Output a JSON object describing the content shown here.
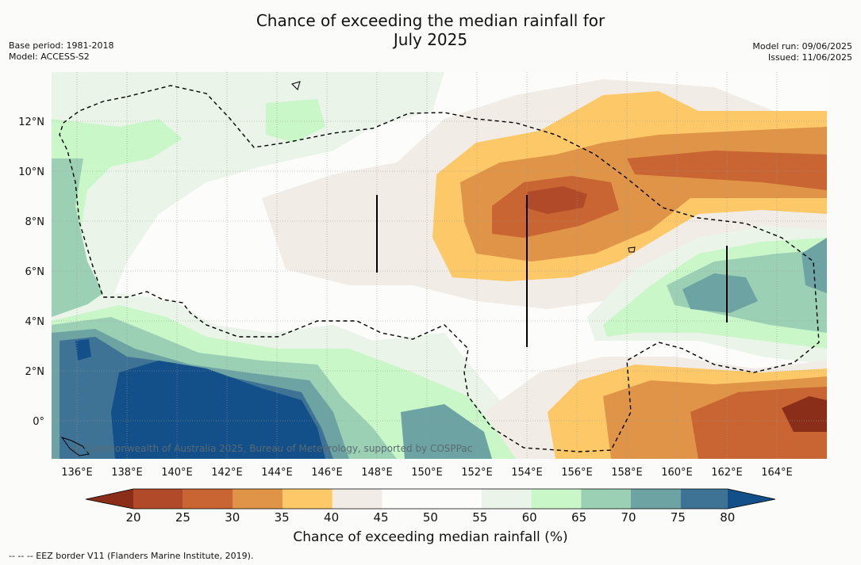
{
  "title_line1": "Chance of exceeding the median rainfall for",
  "title_line2": "July 2025",
  "meta_left": {
    "base_period": "Base period: 1981-2018",
    "model": "Model: ACCESS-S2"
  },
  "meta_right": {
    "model_run": "Model run: 09/06/2025",
    "issued": "Issued: 11/06/2025"
  },
  "x_axis": {
    "ticks": [
      "136°E",
      "138°E",
      "140°E",
      "142°E",
      "144°E",
      "146°E",
      "148°E",
      "150°E",
      "152°E",
      "154°E",
      "156°E",
      "158°E",
      "160°E",
      "162°E",
      "164°E"
    ],
    "range": [
      135,
      166
    ]
  },
  "y_axis": {
    "ticks": [
      "12°N",
      "10°N",
      "8°N",
      "6°N",
      "4°N",
      "2°N",
      "0°"
    ],
    "range": [
      -1.5,
      14
    ]
  },
  "colorbar": {
    "title": "Chance of exceeding median rainfall (%)",
    "ticks": [
      "20",
      "25",
      "30",
      "35",
      "40",
      "45",
      "50",
      "55",
      "60",
      "65",
      "70",
      "75",
      "80"
    ],
    "colors": {
      "lt20": "#8a2e1a",
      "20_25": "#b14a28",
      "25_30": "#c96433",
      "30_35": "#df9447",
      "35_40": "#fdc867",
      "40_45": "#f1ece6",
      "45_50": "#fcfcfa",
      "50_55": "#fcfcfa",
      "55_60": "#eaf4e8",
      "60_65": "#c9f7c8",
      "65_70": "#9bd0b5",
      "70_75": "#6ea3a4",
      "75_80": "#3f7396",
      "gt80": "#134f88"
    }
  },
  "copyright": "© Commonwealth of Australia 2025, Bureau of Meteorology, supported by COSPPac",
  "footnote": "-- -- -- EEZ border V11 (Flanders Marine Institute, 2019)."
}
